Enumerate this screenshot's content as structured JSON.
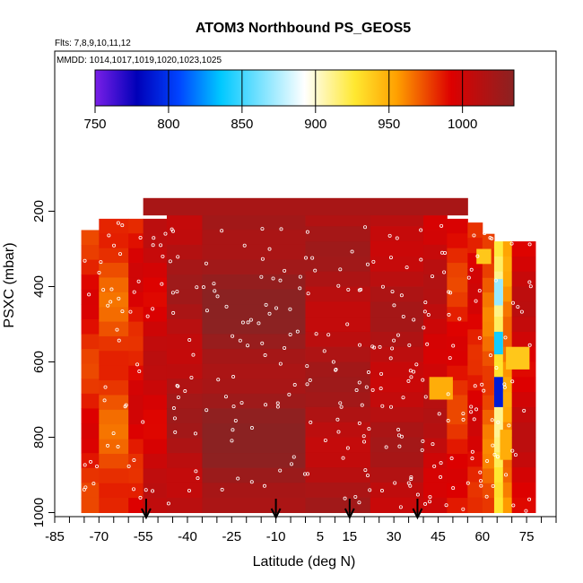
{
  "chart_data": {
    "type": "heatmap",
    "title": "ATOM3 Northbound PS_GEOS5",
    "subtitle_flights": "Flts: 7,8,9,10,11,12",
    "subtitle_mmdd": "MMDD: 1014,1017,1019,1020,1023,1025",
    "xlabel": "Latitude (deg N)",
    "ylabel": "PSXC (mbar)",
    "xlim": [
      -85,
      85
    ],
    "ylim": [
      1000,
      160
    ],
    "x_ticks": [
      "-85",
      "-70",
      "-55",
      "-40",
      "-25",
      "-10",
      "5",
      "15",
      "30",
      "45",
      "60",
      "75"
    ],
    "y_ticks": [
      "200",
      "400",
      "600",
      "800",
      "1000"
    ],
    "colorbar": {
      "min": 750,
      "max": 1035,
      "tick_values": [
        750,
        800,
        850,
        900,
        950,
        1000
      ],
      "tick_labels": [
        "750",
        "800",
        "850",
        "900",
        "950",
        "1000"
      ]
    },
    "arrows_latitude": [
      -54,
      -10,
      15,
      38
    ],
    "bands": [
      {
        "lat_min": -76,
        "lat_max": -70,
        "p_top": 250,
        "p_bottom": 1000,
        "value": 985
      },
      {
        "lat_min": -70,
        "lat_max": -60,
        "p_top": 220,
        "p_bottom": 1000,
        "value": 975
      },
      {
        "lat_min": -60,
        "lat_max": -55,
        "p_top": 220,
        "p_bottom": 1000,
        "value": 990
      },
      {
        "lat_min": -55,
        "lat_max": -47,
        "p_top": 220,
        "p_bottom": 1000,
        "value": 1000
      },
      {
        "lat_min": -47,
        "lat_max": -35,
        "p_top": 210,
        "p_bottom": 1000,
        "value": 1015
      },
      {
        "lat_min": -35,
        "lat_max": 0,
        "p_top": 210,
        "p_bottom": 1000,
        "value": 1028
      },
      {
        "lat_min": 0,
        "lat_max": 22,
        "p_top": 200,
        "p_bottom": 1000,
        "value": 1015
      },
      {
        "lat_min": 22,
        "lat_max": 40,
        "p_top": 200,
        "p_bottom": 1000,
        "value": 1012
      },
      {
        "lat_min": 40,
        "lat_max": 48,
        "p_top": 210,
        "p_bottom": 1000,
        "value": 1005
      },
      {
        "lat_min": 48,
        "lat_max": 55,
        "p_top": 220,
        "p_bottom": 1000,
        "value": 985
      },
      {
        "lat_min": 55,
        "lat_max": 60,
        "p_top": 230,
        "p_bottom": 1000,
        "value": 990
      },
      {
        "lat_min": 60,
        "lat_max": 64,
        "p_top": 260,
        "p_bottom": 1000,
        "value": 970
      },
      {
        "lat_min": 64,
        "lat_max": 67,
        "p_top": 280,
        "p_bottom": 1000,
        "value": 920
      },
      {
        "lat_min": 67,
        "lat_max": 70,
        "p_top": 280,
        "p_bottom": 1000,
        "value": 960
      },
      {
        "lat_min": 70,
        "lat_max": 78,
        "p_top": 280,
        "p_bottom": 1000,
        "value": 1000
      }
    ],
    "top_band": {
      "lat_min": -55,
      "lat_max": 55,
      "p_top": 165,
      "p_bottom": 210,
      "value": 1010
    },
    "patches": [
      {
        "lat_min": 64,
        "lat_max": 67,
        "p_top": 640,
        "p_bottom": 720,
        "value": 790
      },
      {
        "lat_min": 64,
        "lat_max": 67,
        "p_top": 520,
        "p_bottom": 580,
        "value": 840
      },
      {
        "lat_min": 64,
        "lat_max": 67,
        "p_top": 380,
        "p_bottom": 450,
        "value": 870
      },
      {
        "lat_min": 66,
        "lat_max": 70,
        "p_top": 780,
        "p_bottom": 860,
        "value": 950
      },
      {
        "lat_min": 68,
        "lat_max": 76,
        "p_top": 560,
        "p_bottom": 620,
        "value": 940
      },
      {
        "lat_min": 58,
        "lat_max": 63,
        "p_top": 300,
        "p_bottom": 340,
        "value": 940
      },
      {
        "lat_min": 42,
        "lat_max": 50,
        "p_top": 640,
        "p_bottom": 700,
        "value": 950
      }
    ]
  }
}
